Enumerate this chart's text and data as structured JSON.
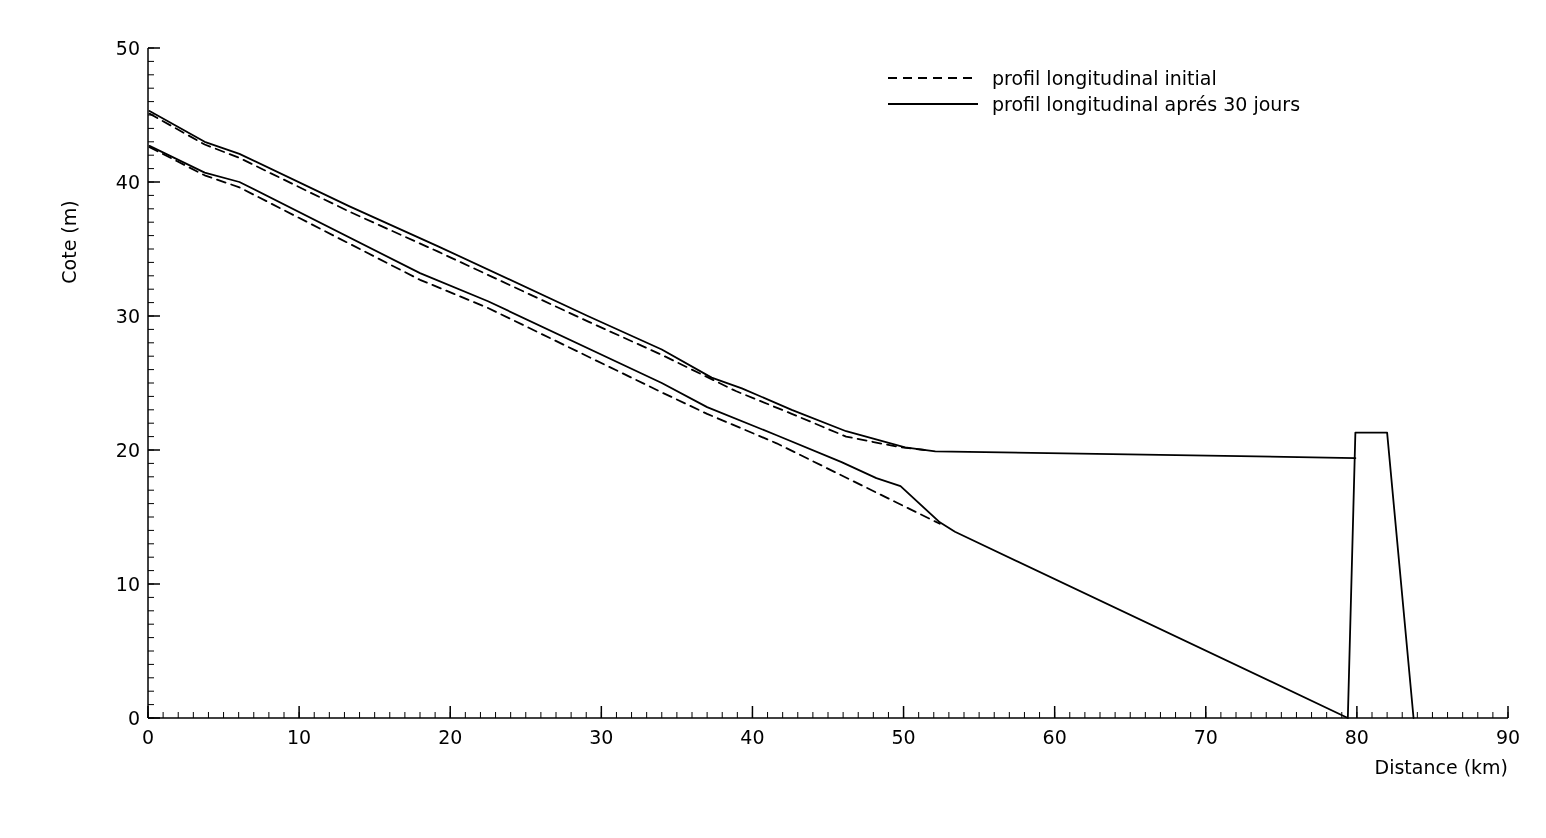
{
  "chart_data": {
    "type": "line",
    "xlabel": "Distance (km)",
    "ylabel": "Cote (m)",
    "xlim": [
      0,
      90
    ],
    "ylim": [
      0,
      50
    ],
    "xticks": [
      0,
      10,
      20,
      30,
      40,
      50,
      60,
      70,
      80,
      90
    ],
    "yticks": [
      0,
      10,
      20,
      30,
      40,
      50
    ],
    "legend": "top right",
    "grid": false,
    "series": [
      {
        "name": "profil longitudinal initial",
        "color": "#000000",
        "line_style": "dashed",
        "x": [
          0.1,
          3.75,
          6.05,
          13.3,
          19.2,
          29.1,
          34.0,
          38.9,
          42.6,
          46.2,
          49.8,
          51.4
        ],
        "values": [
          45.1,
          42.8,
          41.8,
          37.8,
          34.8,
          29.6,
          27.1,
          24.4,
          22.7,
          21.0,
          20.2,
          20.0
        ]
      },
      {
        "color": "#000000",
        "line_style": "dashed",
        "x": [
          0.1,
          3.75,
          6.05,
          18.0,
          22.5,
          34.0,
          37.0,
          41.6,
          49.5,
          52.4
        ],
        "values": [
          42.6,
          40.5,
          39.6,
          32.7,
          30.6,
          24.3,
          22.7,
          20.5,
          16.1,
          14.5
        ]
      },
      {
        "name": "profil longitudinal aprés 30 jours",
        "color": "#000000",
        "line_style": "solid",
        "x": [
          0.1,
          3.75,
          6.05,
          13.3,
          19.2,
          29.1,
          34.0,
          37.3,
          39.3,
          42.6,
          46.2,
          50.1,
          52.1,
          79.9
        ],
        "values": [
          45.3,
          43.0,
          42.1,
          38.2,
          35.2,
          30.0,
          27.5,
          25.4,
          24.6,
          23.0,
          21.4,
          20.2,
          19.9,
          19.4
        ]
      },
      {
        "color": "#000000",
        "line_style": "solid",
        "x": [
          0.1,
          3.75,
          6.05,
          18.0,
          22.5,
          34.0,
          37.0,
          41.6,
          45.9,
          48.2,
          49.8,
          52.4,
          53.4,
          79.4,
          79.9,
          82.0,
          83.75
        ],
        "values": [
          42.7,
          40.7,
          40.0,
          33.2,
          31.1,
          25.0,
          23.2,
          21.1,
          19.1,
          17.9,
          17.3,
          14.6,
          13.9,
          0,
          21.3,
          21.3,
          0
        ]
      }
    ]
  }
}
